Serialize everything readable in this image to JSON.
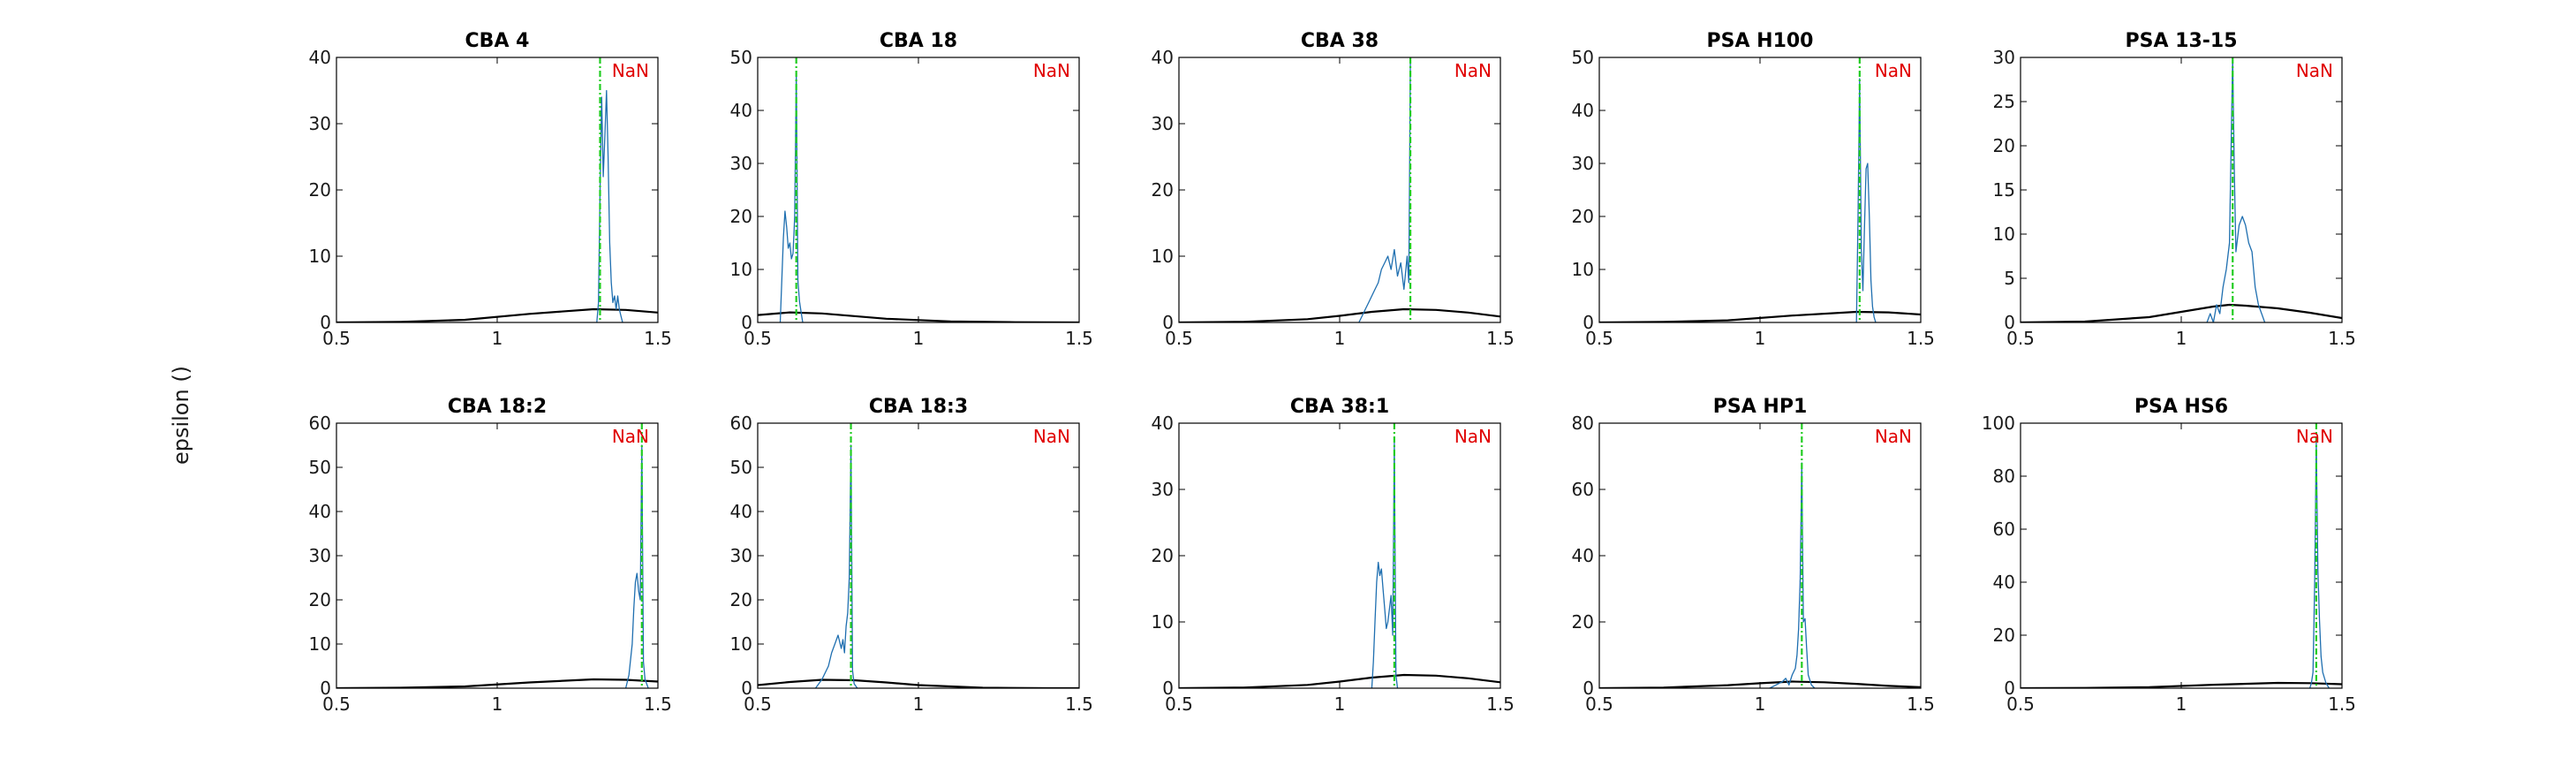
{
  "figure": {
    "ylabel": "epsilon ()",
    "colors": {
      "hist": "#1f6fb0",
      "prior": "#000000",
      "mean": "#22cc22",
      "nan_label": "#e00000"
    }
  },
  "chart_data": [
    {
      "type": "line",
      "title": "CBA 4",
      "annotation": "NaN",
      "xlim": [
        0.5,
        1.5
      ],
      "ylim": [
        0,
        40
      ],
      "xticks": [
        0.5,
        1,
        1.5
      ],
      "yticks": [
        0,
        10,
        20,
        30,
        40
      ],
      "mean_line": 1.32,
      "series": [
        {
          "x": [
            0.5,
            0.7,
            0.9,
            1.1,
            1.3,
            1.4,
            1.5
          ],
          "y": [
            0.0,
            0.1,
            0.4,
            1.3,
            2.0,
            1.9,
            1.5
          ]
        },
        {
          "x": [
            1.31,
            1.315,
            1.32,
            1.325,
            1.33,
            1.335,
            1.34,
            1.345,
            1.35,
            1.355,
            1.36,
            1.365,
            1.37,
            1.375,
            1.38,
            1.385,
            1.39
          ],
          "y": [
            0,
            3,
            20,
            34,
            22,
            28,
            35,
            25,
            12,
            6,
            3,
            4,
            2,
            4,
            2,
            1,
            0
          ]
        }
      ]
    },
    {
      "type": "line",
      "title": "CBA 18",
      "annotation": "NaN",
      "xlim": [
        0.5,
        1.5
      ],
      "ylim": [
        0,
        50
      ],
      "xticks": [
        0.5,
        1,
        1.5
      ],
      "yticks": [
        0,
        10,
        20,
        30,
        40,
        50
      ],
      "mean_line": 0.62,
      "series": [
        {
          "x": [
            0.5,
            0.6,
            0.7,
            0.8,
            0.9,
            1.1,
            1.3,
            1.5
          ],
          "y": [
            1.4,
            1.9,
            1.7,
            1.2,
            0.7,
            0.2,
            0.05,
            0.0
          ]
        },
        {
          "x": [
            0.57,
            0.575,
            0.58,
            0.585,
            0.59,
            0.595,
            0.6,
            0.605,
            0.61,
            0.615,
            0.62,
            0.625,
            0.63,
            0.635,
            0.64
          ],
          "y": [
            0,
            8,
            16,
            21,
            18,
            14,
            15,
            12,
            13,
            20,
            47,
            8,
            4,
            2,
            0
          ]
        }
      ]
    },
    {
      "type": "line",
      "title": "CBA 38",
      "annotation": "NaN",
      "xlim": [
        0.5,
        1.5
      ],
      "ylim": [
        0,
        40
      ],
      "xticks": [
        0.5,
        1,
        1.5
      ],
      "yticks": [
        0,
        10,
        20,
        30,
        40
      ],
      "mean_line": 1.22,
      "series": [
        {
          "x": [
            0.5,
            0.7,
            0.9,
            1.0,
            1.1,
            1.2,
            1.3,
            1.4,
            1.5
          ],
          "y": [
            0.0,
            0.1,
            0.5,
            1.0,
            1.6,
            2.0,
            1.9,
            1.5,
            0.9
          ]
        },
        {
          "x": [
            1.06,
            1.07,
            1.08,
            1.09,
            1.1,
            1.11,
            1.12,
            1.13,
            1.14,
            1.15,
            1.16,
            1.17,
            1.18,
            1.19,
            1.2,
            1.21,
            1.215,
            1.22
          ],
          "y": [
            0,
            1,
            2,
            3,
            4,
            5,
            6,
            8,
            9,
            10,
            8,
            11,
            7,
            9,
            5,
            10,
            6,
            40
          ]
        }
      ]
    },
    {
      "type": "line",
      "title": "PSA H100",
      "annotation": "NaN",
      "xlim": [
        0.5,
        1.5
      ],
      "ylim": [
        0,
        50
      ],
      "xticks": [
        0.5,
        1,
        1.5
      ],
      "yticks": [
        0,
        10,
        20,
        30,
        40,
        50
      ],
      "mean_line": 1.31,
      "series": [
        {
          "x": [
            0.5,
            0.7,
            0.9,
            1.1,
            1.3,
            1.4,
            1.5
          ],
          "y": [
            0.0,
            0.1,
            0.4,
            1.3,
            2.0,
            1.9,
            1.5
          ]
        },
        {
          "x": [
            1.3,
            1.305,
            1.31,
            1.315,
            1.32,
            1.325,
            1.33,
            1.335,
            1.34,
            1.345,
            1.35,
            1.355,
            1.36
          ],
          "y": [
            0,
            20,
            46,
            14,
            6,
            18,
            29,
            30,
            20,
            8,
            3,
            1,
            0
          ]
        }
      ]
    },
    {
      "type": "line",
      "title": "PSA 13-15",
      "annotation": "NaN",
      "xlim": [
        0.5,
        1.5
      ],
      "ylim": [
        0,
        30
      ],
      "xticks": [
        0.5,
        1,
        1.5
      ],
      "yticks": [
        0,
        5,
        10,
        15,
        20,
        25,
        30
      ],
      "mean_line": 1.16,
      "series": [
        {
          "x": [
            0.5,
            0.7,
            0.9,
            1.0,
            1.1,
            1.15,
            1.2,
            1.3,
            1.4,
            1.5
          ],
          "y": [
            0.0,
            0.1,
            0.6,
            1.2,
            1.8,
            2.0,
            1.9,
            1.6,
            1.1,
            0.5
          ]
        },
        {
          "x": [
            1.08,
            1.09,
            1.1,
            1.11,
            1.12,
            1.13,
            1.14,
            1.15,
            1.16,
            1.165,
            1.17,
            1.18,
            1.19,
            1.2,
            1.21,
            1.22,
            1.23,
            1.24,
            1.25,
            1.26
          ],
          "y": [
            0,
            1,
            0,
            2,
            1,
            4,
            6,
            9,
            30,
            17,
            8,
            11,
            12,
            11,
            9,
            8,
            4,
            2,
            1,
            0
          ]
        }
      ]
    },
    {
      "type": "line",
      "title": "CBA 18:2",
      "annotation": "NaN",
      "xlim": [
        0.5,
        1.5
      ],
      "ylim": [
        0,
        60
      ],
      "xticks": [
        0.5,
        1,
        1.5
      ],
      "yticks": [
        0,
        10,
        20,
        30,
        40,
        50,
        60
      ],
      "mean_line": 1.45,
      "series": [
        {
          "x": [
            0.5,
            0.7,
            0.9,
            1.1,
            1.3,
            1.4,
            1.5
          ],
          "y": [
            0.0,
            0.1,
            0.4,
            1.3,
            2.0,
            1.9,
            1.5
          ]
        },
        {
          "x": [
            1.4,
            1.41,
            1.42,
            1.425,
            1.43,
            1.435,
            1.44,
            1.445,
            1.45,
            1.455,
            1.46,
            1.47
          ],
          "y": [
            0,
            3,
            10,
            18,
            24,
            26,
            22,
            20,
            55,
            6,
            2,
            0
          ]
        }
      ]
    },
    {
      "type": "line",
      "title": "CBA 18:3",
      "annotation": "NaN",
      "xlim": [
        0.5,
        1.5
      ],
      "ylim": [
        0,
        60
      ],
      "xticks": [
        0.5,
        1,
        1.5
      ],
      "yticks": [
        0,
        10,
        20,
        30,
        40,
        50,
        60
      ],
      "mean_line": 0.79,
      "series": [
        {
          "x": [
            0.5,
            0.6,
            0.7,
            0.8,
            0.9,
            1.0,
            1.2,
            1.4,
            1.5
          ],
          "y": [
            0.7,
            1.4,
            1.9,
            1.8,
            1.3,
            0.7,
            0.1,
            0.0,
            0.0
          ]
        },
        {
          "x": [
            0.68,
            0.7,
            0.72,
            0.73,
            0.74,
            0.75,
            0.76,
            0.765,
            0.77,
            0.775,
            0.78,
            0.785,
            0.79,
            0.795,
            0.8,
            0.81
          ],
          "y": [
            0,
            2,
            5,
            8,
            10,
            12,
            9,
            11,
            8,
            14,
            17,
            25,
            55,
            4,
            1,
            0
          ]
        }
      ]
    },
    {
      "type": "line",
      "title": "CBA 38:1",
      "annotation": "NaN",
      "xlim": [
        0.5,
        1.5
      ],
      "ylim": [
        0,
        40
      ],
      "xticks": [
        0.5,
        1,
        1.5
      ],
      "yticks": [
        0,
        10,
        20,
        30,
        40
      ],
      "mean_line": 1.17,
      "series": [
        {
          "x": [
            0.5,
            0.7,
            0.9,
            1.0,
            1.1,
            1.2,
            1.3,
            1.4,
            1.5
          ],
          "y": [
            0.0,
            0.1,
            0.5,
            1.0,
            1.6,
            2.0,
            1.9,
            1.5,
            0.9
          ]
        },
        {
          "x": [
            1.1,
            1.105,
            1.11,
            1.115,
            1.12,
            1.125,
            1.13,
            1.135,
            1.14,
            1.145,
            1.15,
            1.155,
            1.16,
            1.165,
            1.17,
            1.175,
            1.18
          ],
          "y": [
            0,
            4,
            10,
            16,
            19,
            17,
            18,
            15,
            12,
            9,
            10,
            12,
            14,
            8,
            37,
            2,
            0
          ]
        }
      ]
    },
    {
      "type": "line",
      "title": "PSA HP1",
      "annotation": "NaN",
      "xlim": [
        0.5,
        1.5
      ],
      "ylim": [
        0,
        80
      ],
      "xticks": [
        0.5,
        1,
        1.5
      ],
      "yticks": [
        0,
        20,
        40,
        60,
        80
      ],
      "mean_line": 1.13,
      "series": [
        {
          "x": [
            0.5,
            0.7,
            0.9,
            1.0,
            1.1,
            1.2,
            1.3,
            1.4,
            1.5
          ],
          "y": [
            0.0,
            0.2,
            0.9,
            1.5,
            2.0,
            1.8,
            1.3,
            0.7,
            0.3
          ]
        },
        {
          "x": [
            1.03,
            1.05,
            1.07,
            1.08,
            1.09,
            1.1,
            1.11,
            1.115,
            1.12,
            1.125,
            1.13,
            1.135,
            1.14,
            1.145,
            1.15,
            1.16,
            1.17
          ],
          "y": [
            0,
            1,
            2,
            3,
            1,
            4,
            6,
            10,
            18,
            33,
            68,
            20,
            21,
            12,
            4,
            1,
            0
          ]
        }
      ]
    },
    {
      "type": "line",
      "title": "PSA HS6",
      "annotation": "NaN",
      "xlim": [
        0.5,
        1.5
      ],
      "ylim": [
        0,
        100
      ],
      "xticks": [
        0.5,
        1,
        1.5
      ],
      "yticks": [
        0,
        20,
        40,
        60,
        80,
        100
      ],
      "mean_line": 1.42,
      "series": [
        {
          "x": [
            0.5,
            0.7,
            0.9,
            1.1,
            1.3,
            1.4,
            1.5
          ],
          "y": [
            0.0,
            0.1,
            0.4,
            1.3,
            2.0,
            1.9,
            1.5
          ]
        },
        {
          "x": [
            1.4,
            1.405,
            1.41,
            1.415,
            1.42,
            1.425,
            1.43,
            1.435,
            1.44,
            1.45,
            1.46
          ],
          "y": [
            0,
            2,
            6,
            40,
            93,
            45,
            26,
            12,
            6,
            2,
            0
          ]
        }
      ]
    }
  ]
}
